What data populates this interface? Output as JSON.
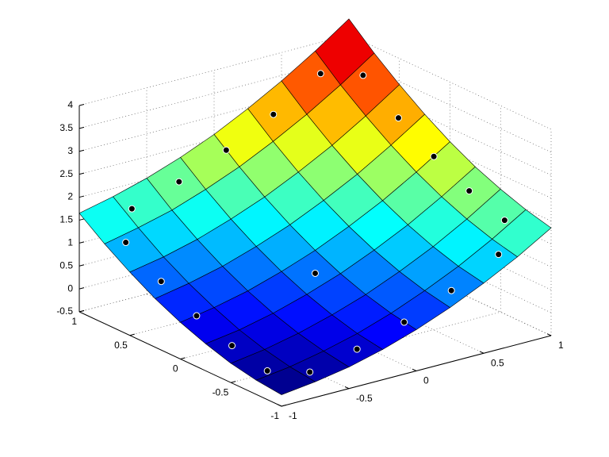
{
  "chart_data": {
    "type": "surface",
    "x": [
      -1,
      -0.75,
      -0.5,
      -0.25,
      0,
      0.25,
      0.5,
      0.75,
      1
    ],
    "y": [
      -1,
      -0.75,
      -0.5,
      -0.25,
      0,
      0.25,
      0.5,
      0.75,
      1
    ],
    "z": [
      [
        -0.25,
        -0.16,
        -0.03,
        0.16,
        0.4,
        0.69,
        1.03,
        1.41,
        1.85
      ],
      [
        -0.19,
        -0.09,
        0.06,
        0.25,
        0.5,
        0.8,
        1.14,
        1.54,
        1.99
      ],
      [
        -0.08,
        0.03,
        0.19,
        0.4,
        0.65,
        0.96,
        1.31,
        1.72,
        2.18
      ],
      [
        0.09,
        0.2,
        0.37,
        0.59,
        0.85,
        1.17,
        1.53,
        1.95,
        2.41
      ],
      [
        0.3,
        0.43,
        0.6,
        0.83,
        1.1,
        1.43,
        1.8,
        2.23,
        2.7
      ],
      [
        0.56,
        0.7,
        0.88,
        1.12,
        1.4,
        1.74,
        2.12,
        2.56,
        3.04
      ],
      [
        0.88,
        1.02,
        1.21,
        1.46,
        1.75,
        2.1,
        2.49,
        2.94,
        3.43
      ],
      [
        1.24,
        1.4,
        1.59,
        1.85,
        2.15,
        2.51,
        2.91,
        3.36,
        3.86
      ],
      [
        1.65,
        1.82,
        2.03,
        2.29,
        2.6,
        2.97,
        3.38,
        3.84,
        4.35
      ]
    ],
    "edgecolor": "#000000",
    "colormap": "jet",
    "points": {
      "x": [
        -0.7,
        -0.35,
        0,
        0.35,
        0.7,
        0.88,
        0.88,
        0.88,
        0.88,
        0.88,
        0.7,
        0.35,
        0,
        -0.35,
        -0.7,
        -0.88,
        -0.88,
        -0.88,
        -0.88,
        -0.88,
        0
      ],
      "y": [
        -0.88,
        -0.88,
        -0.88,
        -0.88,
        -0.88,
        -0.7,
        -0.35,
        0,
        0.35,
        0.7,
        0.88,
        0.88,
        0.88,
        0.88,
        0.88,
        0.7,
        0.35,
        0,
        -0.35,
        -0.7,
        0
      ],
      "z": [
        -0.11,
        0.12,
        0.44,
        0.86,
        1.38,
        1.8,
        2.08,
        2.47,
        2.95,
        3.52,
        3.51,
        2.89,
        2.38,
        1.96,
        1.64,
        1.23,
        0.74,
        0.35,
        0.06,
        -0.13,
        0.6
      ],
      "color": "#000000",
      "edgecolor": "#ffffff"
    },
    "xlim": [
      -1,
      1
    ],
    "ylim": [
      -1,
      1
    ],
    "zlim": [
      -0.5,
      4
    ],
    "xticks": [
      -1,
      -0.5,
      0,
      0.5,
      1
    ],
    "yticks": [
      -1,
      -0.5,
      0,
      0.5,
      1
    ],
    "zticks": [
      -0.5,
      0,
      0.5,
      1,
      1.5,
      2,
      2.5,
      3,
      3.5,
      4
    ],
    "grid": true
  }
}
